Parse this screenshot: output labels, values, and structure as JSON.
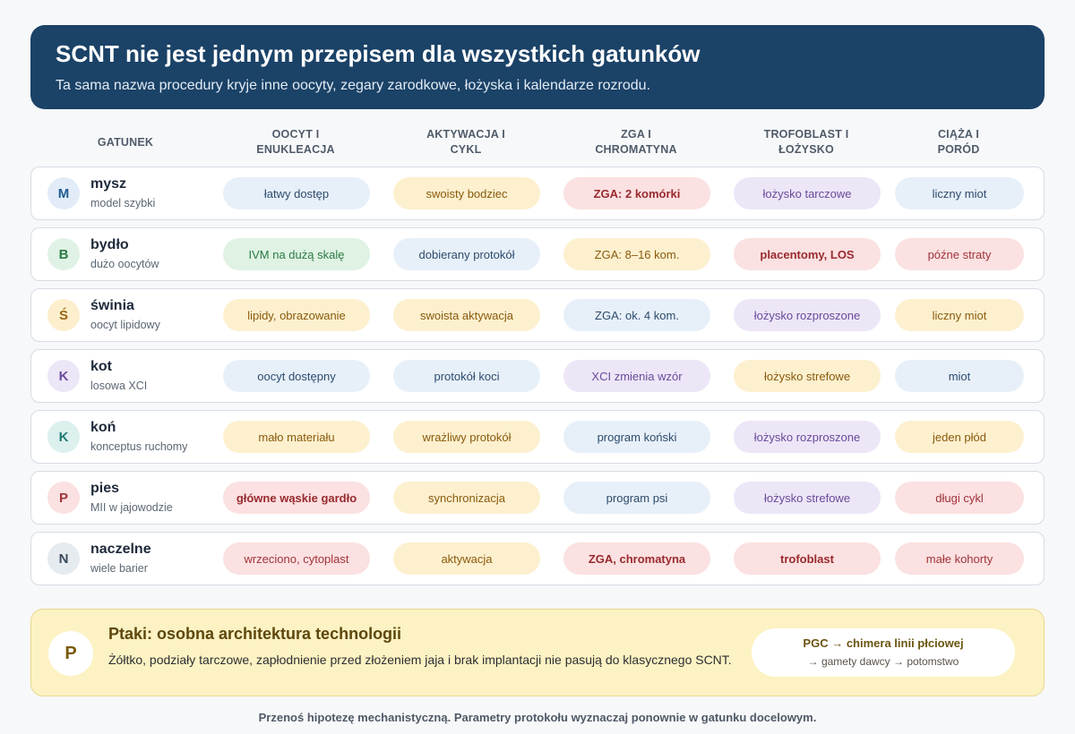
{
  "header": {
    "title": "SCNT nie jest jednym przepisem dla wszystkich gatunków",
    "subtitle": "Ta sama nazwa procedury kryje inne oocyty, zegary zarodkowe, łożyska i kalendarze rozrodu."
  },
  "columns": [
    {
      "line1": "GATUNEK",
      "line2": ""
    },
    {
      "line1": "OOCYT I",
      "line2": "ENUKLEACJA"
    },
    {
      "line1": "AKTYWACJA I",
      "line2": "CYKL"
    },
    {
      "line1": "ZGA I",
      "line2": "CHROMATYNA"
    },
    {
      "line1": "TROFOBLAST I",
      "line2": "ŁOŻYSKO"
    },
    {
      "line1": "CIĄŻA I",
      "line2": "PORÓD"
    }
  ],
  "rows": [
    {
      "letter": "M",
      "name": "mysz",
      "sub": "model szybki",
      "avatar_color": "blue",
      "cells": [
        {
          "text": "łatwy dostęp",
          "color": "blue",
          "bold": false
        },
        {
          "text": "swoisty bodziec",
          "color": "yellow",
          "bold": false
        },
        {
          "text": "ZGA: 2 komórki",
          "color": "red",
          "bold": true
        },
        {
          "text": "łożysko tarczowe",
          "color": "purple",
          "bold": false
        },
        {
          "text": "liczny miot",
          "color": "blue",
          "bold": false
        }
      ]
    },
    {
      "letter": "B",
      "name": "bydło",
      "sub": "dużo oocytów",
      "avatar_color": "green",
      "cells": [
        {
          "text": "IVM na dużą skalę",
          "color": "green",
          "bold": false
        },
        {
          "text": "dobierany protokół",
          "color": "blue",
          "bold": false
        },
        {
          "text": "ZGA: 8–16 kom.",
          "color": "yellow",
          "bold": false
        },
        {
          "text": "placentomy, LOS",
          "color": "red",
          "bold": true
        },
        {
          "text": "późne straty",
          "color": "red",
          "bold": false
        }
      ]
    },
    {
      "letter": "Ś",
      "name": "świnia",
      "sub": "oocyt lipidowy",
      "avatar_color": "yellow",
      "cells": [
        {
          "text": "lipidy, obrazowanie",
          "color": "yellow",
          "bold": false
        },
        {
          "text": "swoista aktywacja",
          "color": "yellow",
          "bold": false
        },
        {
          "text": "ZGA: ok. 4 kom.",
          "color": "blue",
          "bold": false
        },
        {
          "text": "łożysko rozproszone",
          "color": "purple",
          "bold": false
        },
        {
          "text": "liczny miot",
          "color": "yellow",
          "bold": false
        }
      ]
    },
    {
      "letter": "K",
      "name": "kot",
      "sub": "losowa XCI",
      "avatar_color": "purple",
      "cells": [
        {
          "text": "oocyt dostępny",
          "color": "blue",
          "bold": false
        },
        {
          "text": "protokół koci",
          "color": "blue",
          "bold": false
        },
        {
          "text": "XCI zmienia wzór",
          "color": "purple",
          "bold": false
        },
        {
          "text": "łożysko strefowe",
          "color": "yellow",
          "bold": false
        },
        {
          "text": "miot",
          "color": "blue",
          "bold": false
        }
      ]
    },
    {
      "letter": "K",
      "name": "koń",
      "sub": "konceptus ruchomy",
      "avatar_color": "teal",
      "cells": [
        {
          "text": "mało materiału",
          "color": "yellow",
          "bold": false
        },
        {
          "text": "wrażliwy protokół",
          "color": "yellow",
          "bold": false
        },
        {
          "text": "program koński",
          "color": "blue",
          "bold": false
        },
        {
          "text": "łożysko rozproszone",
          "color": "purple",
          "bold": false
        },
        {
          "text": "jeden płód",
          "color": "yellow",
          "bold": false
        }
      ]
    },
    {
      "letter": "P",
      "name": "pies",
      "sub": "MII w jajowodzie",
      "avatar_color": "red",
      "cells": [
        {
          "text": "główne wąskie gardło",
          "color": "red",
          "bold": true
        },
        {
          "text": "synchronizacja",
          "color": "yellow",
          "bold": false
        },
        {
          "text": "program psi",
          "color": "blue",
          "bold": false
        },
        {
          "text": "łożysko strefowe",
          "color": "purple",
          "bold": false
        },
        {
          "text": "długi cykl",
          "color": "red",
          "bold": false
        }
      ]
    },
    {
      "letter": "N",
      "name": "naczelne",
      "sub": "wiele barier",
      "avatar_color": "gray",
      "cells": [
        {
          "text": "wrzeciono, cytoplast",
          "color": "red",
          "bold": false
        },
        {
          "text": "aktywacja",
          "color": "yellow",
          "bold": false
        },
        {
          "text": "ZGA, chromatyna",
          "color": "red",
          "bold": true
        },
        {
          "text": "trofoblast",
          "color": "red",
          "bold": true
        },
        {
          "text": "małe kohorty",
          "color": "red",
          "bold": false
        }
      ]
    }
  ],
  "birds": {
    "letter": "P",
    "title": "Ptaki: osobna architektura technologii",
    "text": "Żółtko, podziały tarczowe, zapłodnienie przed złożeniem jaja i brak implantacji nie pasują do klasycznego SCNT.",
    "flow_line1": "PGC → chimera linii płciowej",
    "flow_line2": "→ gamety dawcy → potomstwo"
  },
  "footer": "Przenoś hipotezę mechanistyczną. Parametry protokołu wyznaczaj ponownie w gatunku docelowym."
}
